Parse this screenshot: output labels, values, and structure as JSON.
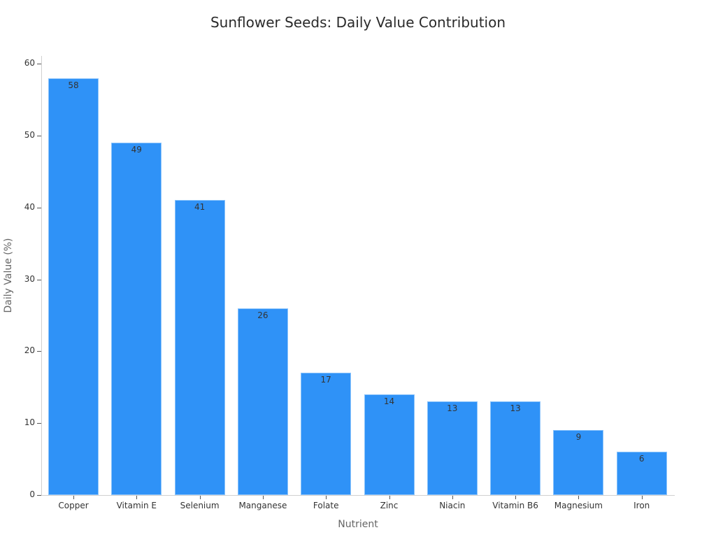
{
  "chart_data": {
    "type": "bar",
    "title": "Sunflower Seeds: Daily Value Contribution",
    "xlabel": "Nutrient",
    "ylabel": "Daily Value (%)",
    "categories": [
      "Copper",
      "Vitamin E",
      "Selenium",
      "Manganese",
      "Folate",
      "Zinc",
      "Niacin",
      "Vitamin B6",
      "Magnesium",
      "Iron"
    ],
    "values": [
      58,
      49,
      41,
      26,
      17,
      14,
      13,
      13,
      9,
      6
    ],
    "ylim": [
      0,
      61
    ],
    "yticks": [
      0,
      10,
      20,
      30,
      40,
      50,
      60
    ],
    "grid": false,
    "legend": null,
    "bar_color": "#2f92f7",
    "data_labels": true
  }
}
